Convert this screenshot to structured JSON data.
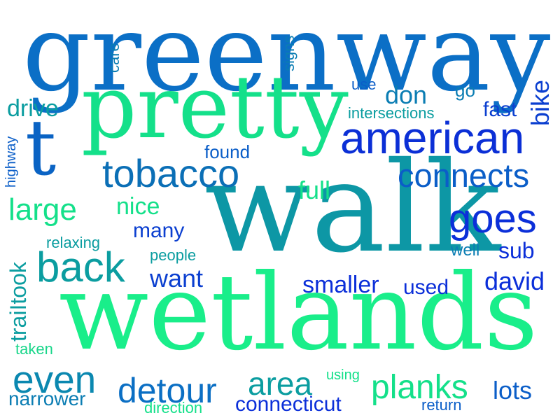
{
  "word_cloud": {
    "words": [
      {
        "text": "greenway",
        "color": "#0b6fc6"
      },
      {
        "text": "walk",
        "color": "#0d97a5"
      },
      {
        "text": "wetlands",
        "color": "#19ee8a"
      },
      {
        "text": "pretty",
        "color": "#14e08a"
      },
      {
        "text": "t",
        "color": "#0a63c4"
      },
      {
        "text": "american",
        "color": "#0b2fd6"
      },
      {
        "text": "tobacco",
        "color": "#0b6fb6"
      },
      {
        "text": "back",
        "color": "#0b9da0"
      },
      {
        "text": "goes",
        "color": "#0b2fd9"
      },
      {
        "text": "connects",
        "color": "#0b5ec8"
      },
      {
        "text": "large",
        "color": "#14e08a"
      },
      {
        "text": "detour",
        "color": "#0b6fc4"
      },
      {
        "text": "even",
        "color": "#0b88b0"
      },
      {
        "text": "planks",
        "color": "#14e08a"
      },
      {
        "text": "area",
        "color": "#0b9da0"
      },
      {
        "text": "don",
        "color": "#0b7db3"
      },
      {
        "text": "fast",
        "color": "#0b3fd0"
      },
      {
        "text": "bike",
        "color": "#0b3fd0"
      },
      {
        "text": "drive",
        "color": "#0b9da0"
      },
      {
        "text": "full",
        "color": "#14e08a"
      },
      {
        "text": "nice",
        "color": "#14e08a"
      },
      {
        "text": "many",
        "color": "#0b3fd0"
      },
      {
        "text": "want",
        "color": "#0b3fd0"
      },
      {
        "text": "smaller",
        "color": "#0b2fd9"
      },
      {
        "text": "used",
        "color": "#0b2fd9"
      },
      {
        "text": "david",
        "color": "#0b2fd9"
      },
      {
        "text": "sub",
        "color": "#0b2fd9"
      },
      {
        "text": "lots",
        "color": "#0b5ec8"
      },
      {
        "text": "connecticut",
        "color": "#0b2fd9"
      },
      {
        "text": "narrower",
        "color": "#0b7db3"
      },
      {
        "text": "traiItook",
        "color": "#0b9da0"
      },
      {
        "text": "go",
        "color": "#0b7db3"
      },
      {
        "text": "found",
        "color": "#0b5ec8"
      },
      {
        "text": "relaxing",
        "color": "#0b9da0"
      },
      {
        "text": "people",
        "color": "#0b9da0"
      },
      {
        "text": "well",
        "color": "#0b7db3"
      },
      {
        "text": "intersections",
        "color": "#0b9da0"
      },
      {
        "text": "use",
        "color": "#0b5ec8"
      },
      {
        "text": "care",
        "color": "#0b7db3"
      },
      {
        "text": "signs",
        "color": "#0b7db3"
      },
      {
        "text": "highway",
        "color": "#0b5ec8"
      },
      {
        "text": "taken",
        "color": "#19d68a"
      },
      {
        "text": "using",
        "color": "#14e08a"
      },
      {
        "text": "direction",
        "color": "#14e08a"
      },
      {
        "text": "return",
        "color": "#0b5ec8"
      }
    ]
  }
}
